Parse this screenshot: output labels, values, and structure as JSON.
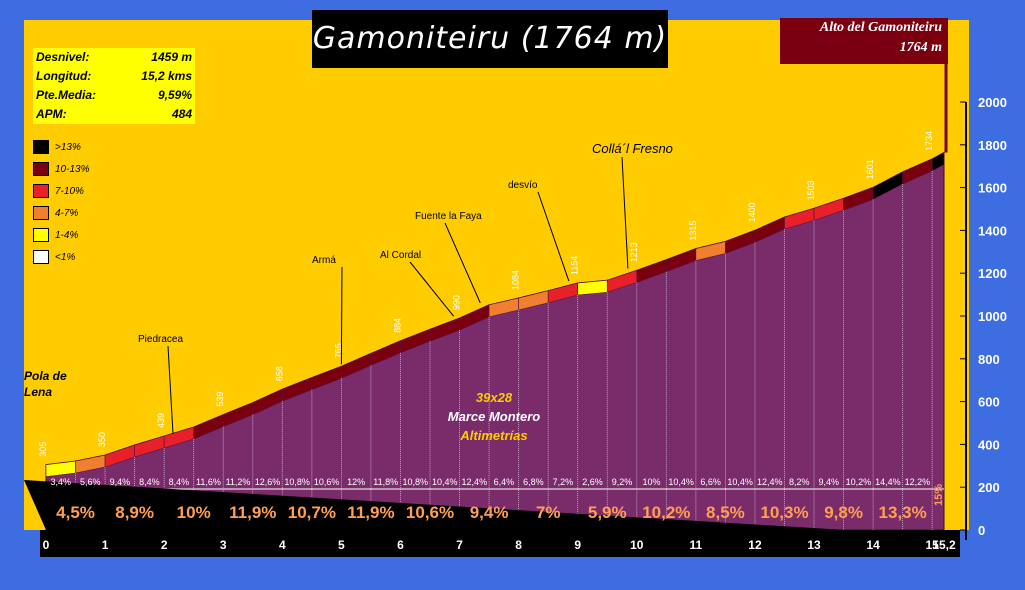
{
  "title": "Gamoniteiru (1764 m)",
  "summit_box": {
    "line1": "Alto del Gamoniteiru",
    "line2": "1764 m"
  },
  "stats": [
    {
      "label": "Desnivel:",
      "value": "1459 m"
    },
    {
      "label": "Longitud:",
      "value": "15,2 kms"
    },
    {
      "label": "Pte.Media:",
      "value": "9,59%"
    },
    {
      "label": "APM:",
      "value": "484"
    }
  ],
  "legend": [
    {
      "label": ">13%",
      "color": "#000000"
    },
    {
      "label": "10-13%",
      "color": "#7a0010"
    },
    {
      "label": "7-10%",
      "color": "#e8202a"
    },
    {
      "label": "4-7%",
      "color": "#f08030"
    },
    {
      "label": "1-4%",
      "color": "#ffff00"
    },
    {
      "label": "<1%",
      "color": "#ffffff"
    }
  ],
  "credit": {
    "line1": "39x28",
    "line2": "Marce Montero",
    "line3": "Altimetrías"
  },
  "colors": {
    "background": "#ffcc00",
    "profile_fill": "#7a2c6a",
    "frame": "#3d6de0",
    "base": "#000000"
  },
  "chart_data": {
    "type": "area",
    "title": "Gamoniteiru (1764 m)",
    "xlabel": "",
    "ylabel": "",
    "xlim": [
      0,
      15.2
    ],
    "ylim": [
      0,
      2000
    ],
    "y_ticks": [
      "0",
      "200",
      "400",
      "600",
      "800",
      "1000",
      "1200",
      "1400",
      "1600",
      "1800",
      "2000"
    ],
    "x_ticks": [
      "0",
      "1",
      "2",
      "3",
      "4",
      "5",
      "6",
      "7",
      "8",
      "9",
      "10",
      "11",
      "12",
      "13",
      "14",
      "15",
      "15,2"
    ],
    "x": [
      0,
      0.5,
      1,
      1.5,
      2,
      2.5,
      3,
      3.5,
      4,
      4.5,
      5,
      5.5,
      6,
      6.5,
      7,
      7.5,
      8,
      8.5,
      9,
      9.5,
      10,
      10.5,
      11,
      11.5,
      12,
      12.5,
      13,
      13.5,
      14,
      14.5,
      15,
      15.2
    ],
    "altitude": [
      305,
      322,
      350,
      397,
      439,
      481,
      539,
      595,
      658,
      712,
      765,
      825,
      884,
      938,
      990,
      1052,
      1084,
      1118,
      1154,
      1167,
      1213,
      1263,
      1315,
      1348,
      1400,
      1462,
      1503,
      1550,
      1601,
      1673,
      1734,
      1764
    ],
    "altitude_labels": [
      "305",
      "350",
      "439",
      "539",
      "658",
      "765",
      "884",
      "990",
      "1084",
      "1154",
      "1213",
      "1315",
      "1400",
      "1503",
      "1601",
      "1734"
    ],
    "half_km_slopes": [
      "3,4%",
      "5,6%",
      "9,4%",
      "8,4%",
      "8,4%",
      "11,6%",
      "11,2%",
      "12,6%",
      "10,8%",
      "10,6%",
      "12%",
      "11,8%",
      "10,8%",
      "10,4%",
      "12,4%",
      "6,4%",
      "6,8%",
      "7,2%",
      "2,6%",
      "9,2%",
      "10%",
      "10,4%",
      "6,6%",
      "10,4%",
      "12,4%",
      "8,2%",
      "9,4%",
      "10,2%",
      "14,4%",
      "12,2%"
    ],
    "km_slopes": [
      "4,5%",
      "8,9%",
      "10%",
      "11,9%",
      "10,7%",
      "11,9%",
      "10,6%",
      "9,4%",
      "7%",
      "5,9%",
      "10,2%",
      "8,5%",
      "10,3%",
      "9,8%",
      "13,3%"
    ],
    "last_slope": "15%",
    "annotations": [
      {
        "text": "Pola de Lena",
        "km": 0
      },
      {
        "text": "Piedracea",
        "km": 2.15
      },
      {
        "text": "Armá",
        "km": 5.0
      },
      {
        "text": "Al Cordal",
        "km": 6.9
      },
      {
        "text": "Fuente la Faya",
        "km": 7.35
      },
      {
        "text": "desvío",
        "km": 8.85
      },
      {
        "text": "Collá´l Fresno",
        "km": 9.85
      }
    ]
  }
}
